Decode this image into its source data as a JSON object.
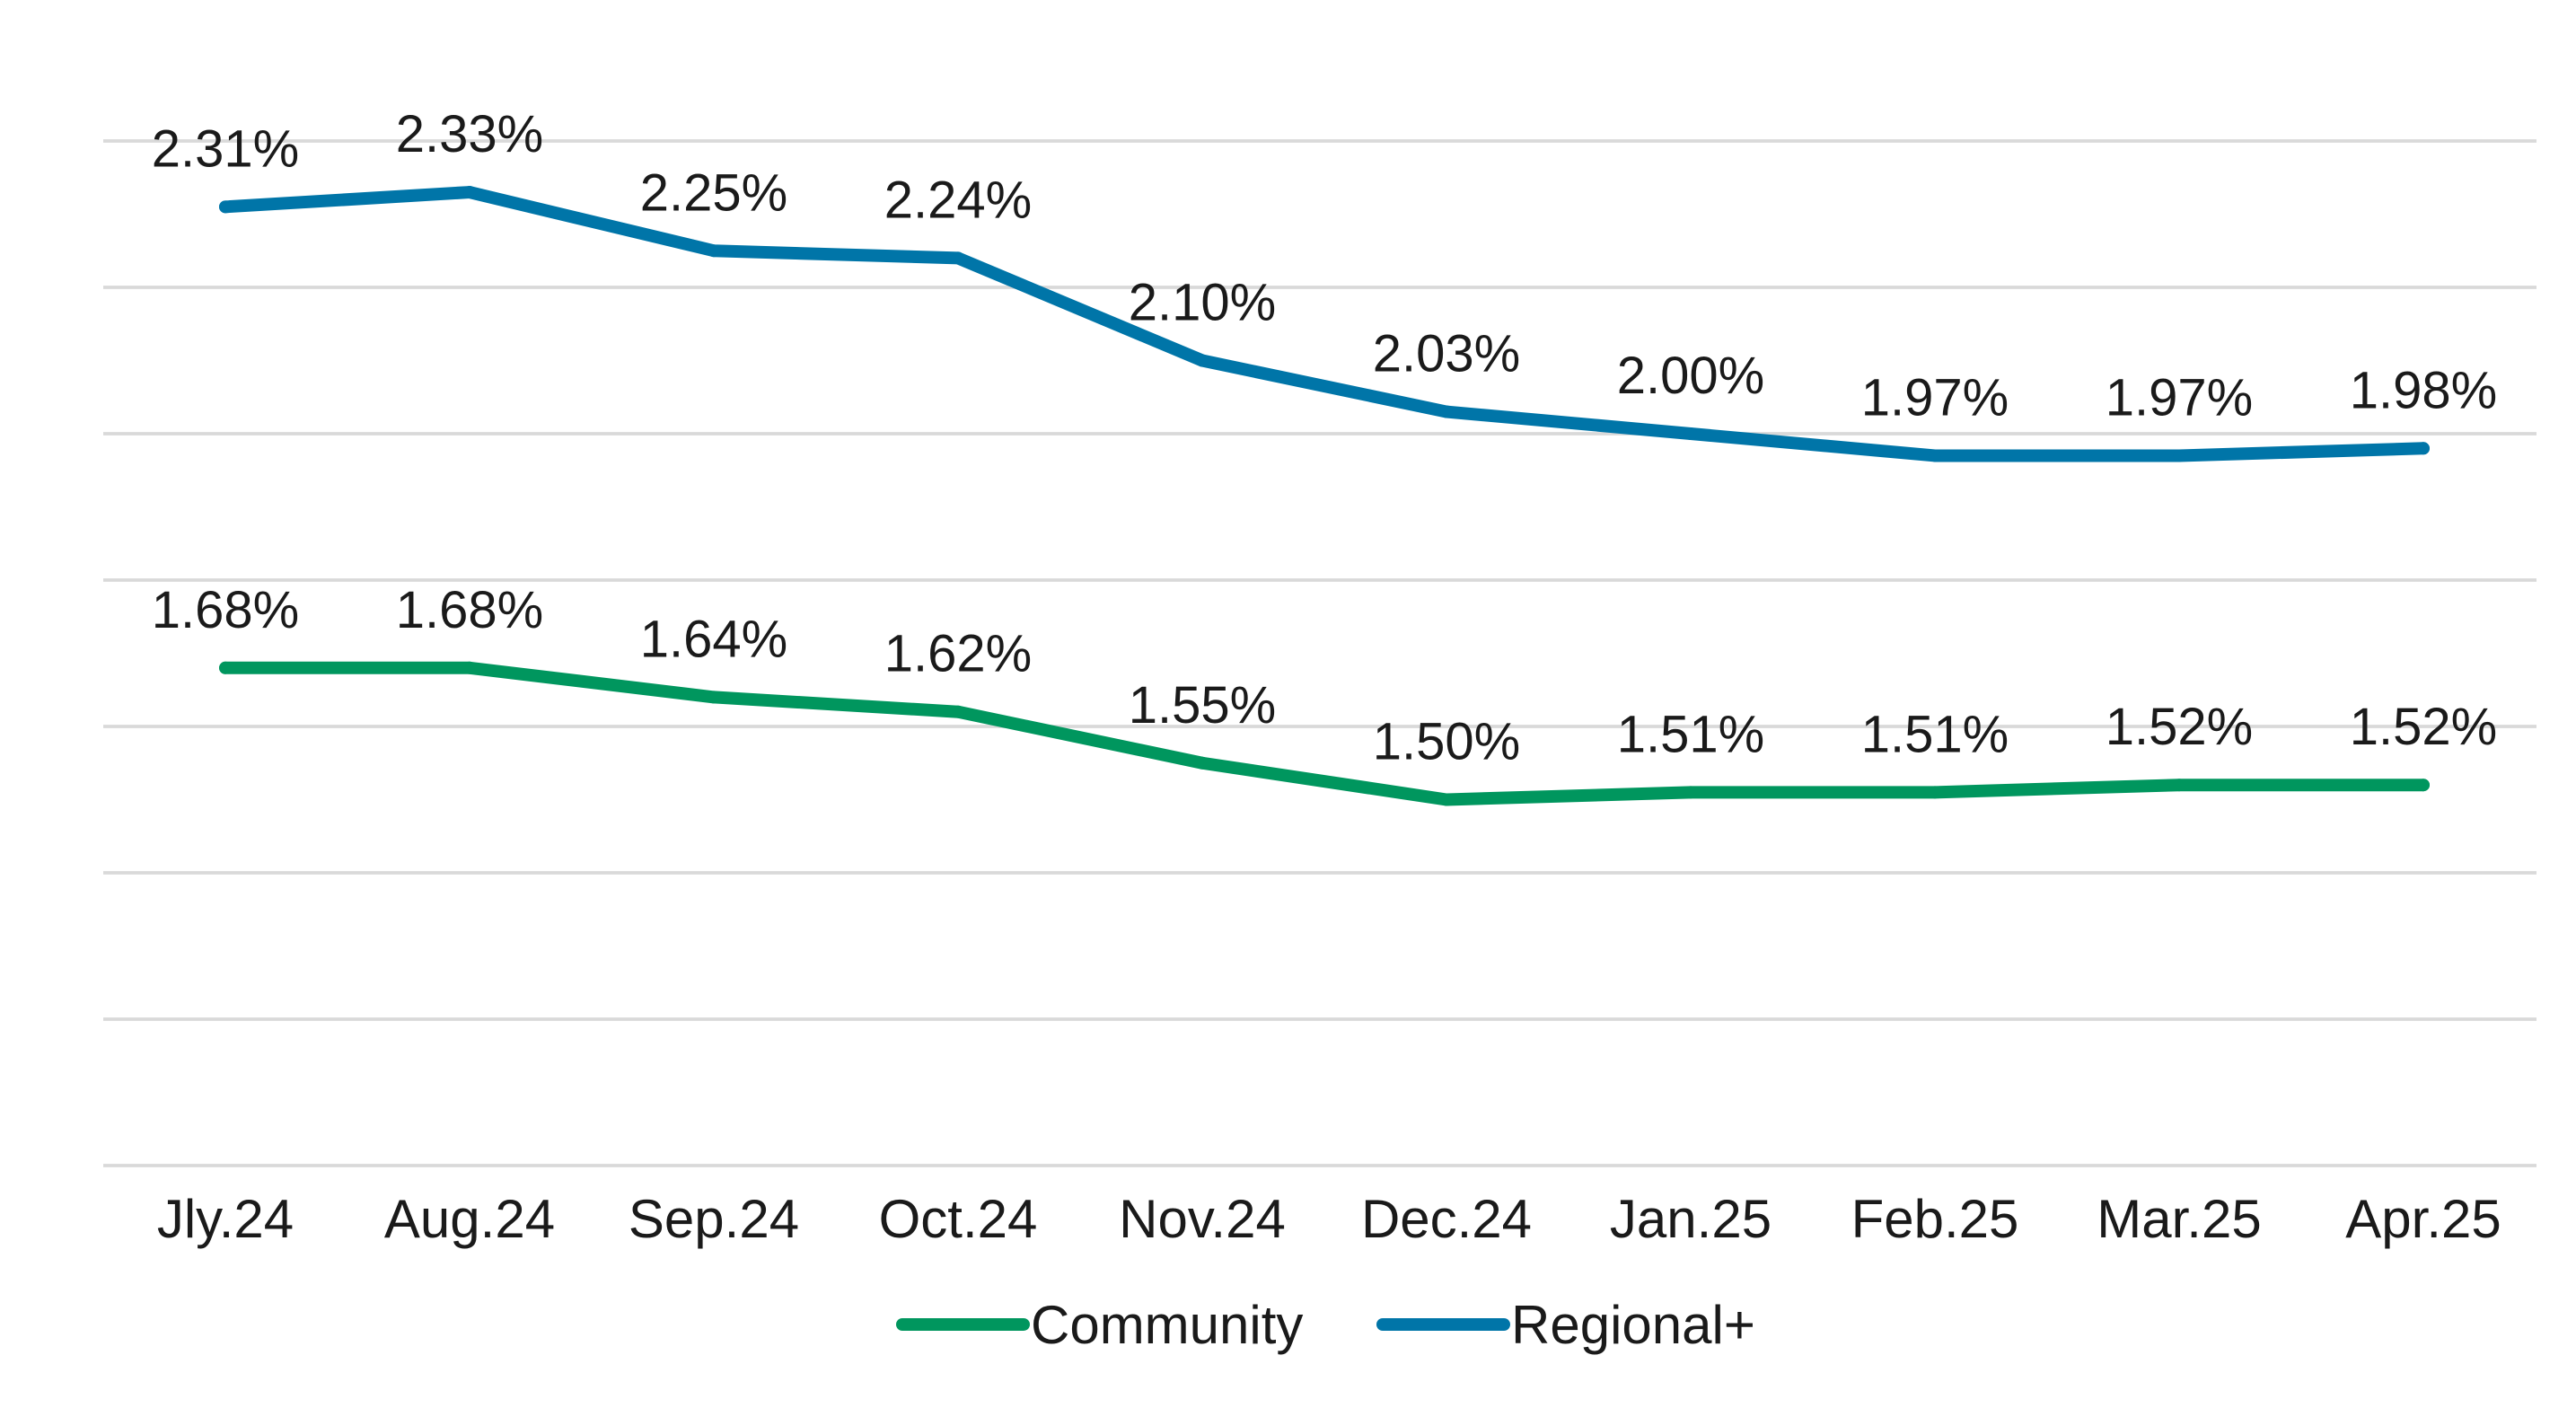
{
  "chart_data": {
    "type": "line",
    "title": "",
    "xlabel": "",
    "ylabel": "",
    "categories": [
      "Jly.24",
      "Aug.24",
      "Sep.24",
      "Oct.24",
      "Nov.24",
      "Dec.24",
      "Jan.25",
      "Feb.25",
      "Mar.25",
      "Apr.25"
    ],
    "ylim": [
      1.0,
      2.4
    ],
    "y_grid_step": 0.2,
    "grid": true,
    "legend_position": "bottom",
    "series": [
      {
        "name": "Community",
        "color": "#00965e",
        "values": [
          1.68,
          1.68,
          1.64,
          1.62,
          1.55,
          1.5,
          1.51,
          1.51,
          1.52,
          1.52
        ],
        "labels": [
          "1.68%",
          "1.68%",
          "1.64%",
          "1.62%",
          "1.55%",
          "1.50%",
          "1.51%",
          "1.51%",
          "1.52%",
          "1.52%"
        ]
      },
      {
        "name": "Regional+",
        "color": "#0075a8",
        "values": [
          2.31,
          2.33,
          2.25,
          2.24,
          2.1,
          2.03,
          2.0,
          1.97,
          1.97,
          1.98
        ],
        "labels": [
          "2.31%",
          "2.33%",
          "2.25%",
          "2.24%",
          "2.10%",
          "2.03%",
          "2.00%",
          "1.97%",
          "1.97%",
          "1.98%"
        ]
      }
    ]
  }
}
